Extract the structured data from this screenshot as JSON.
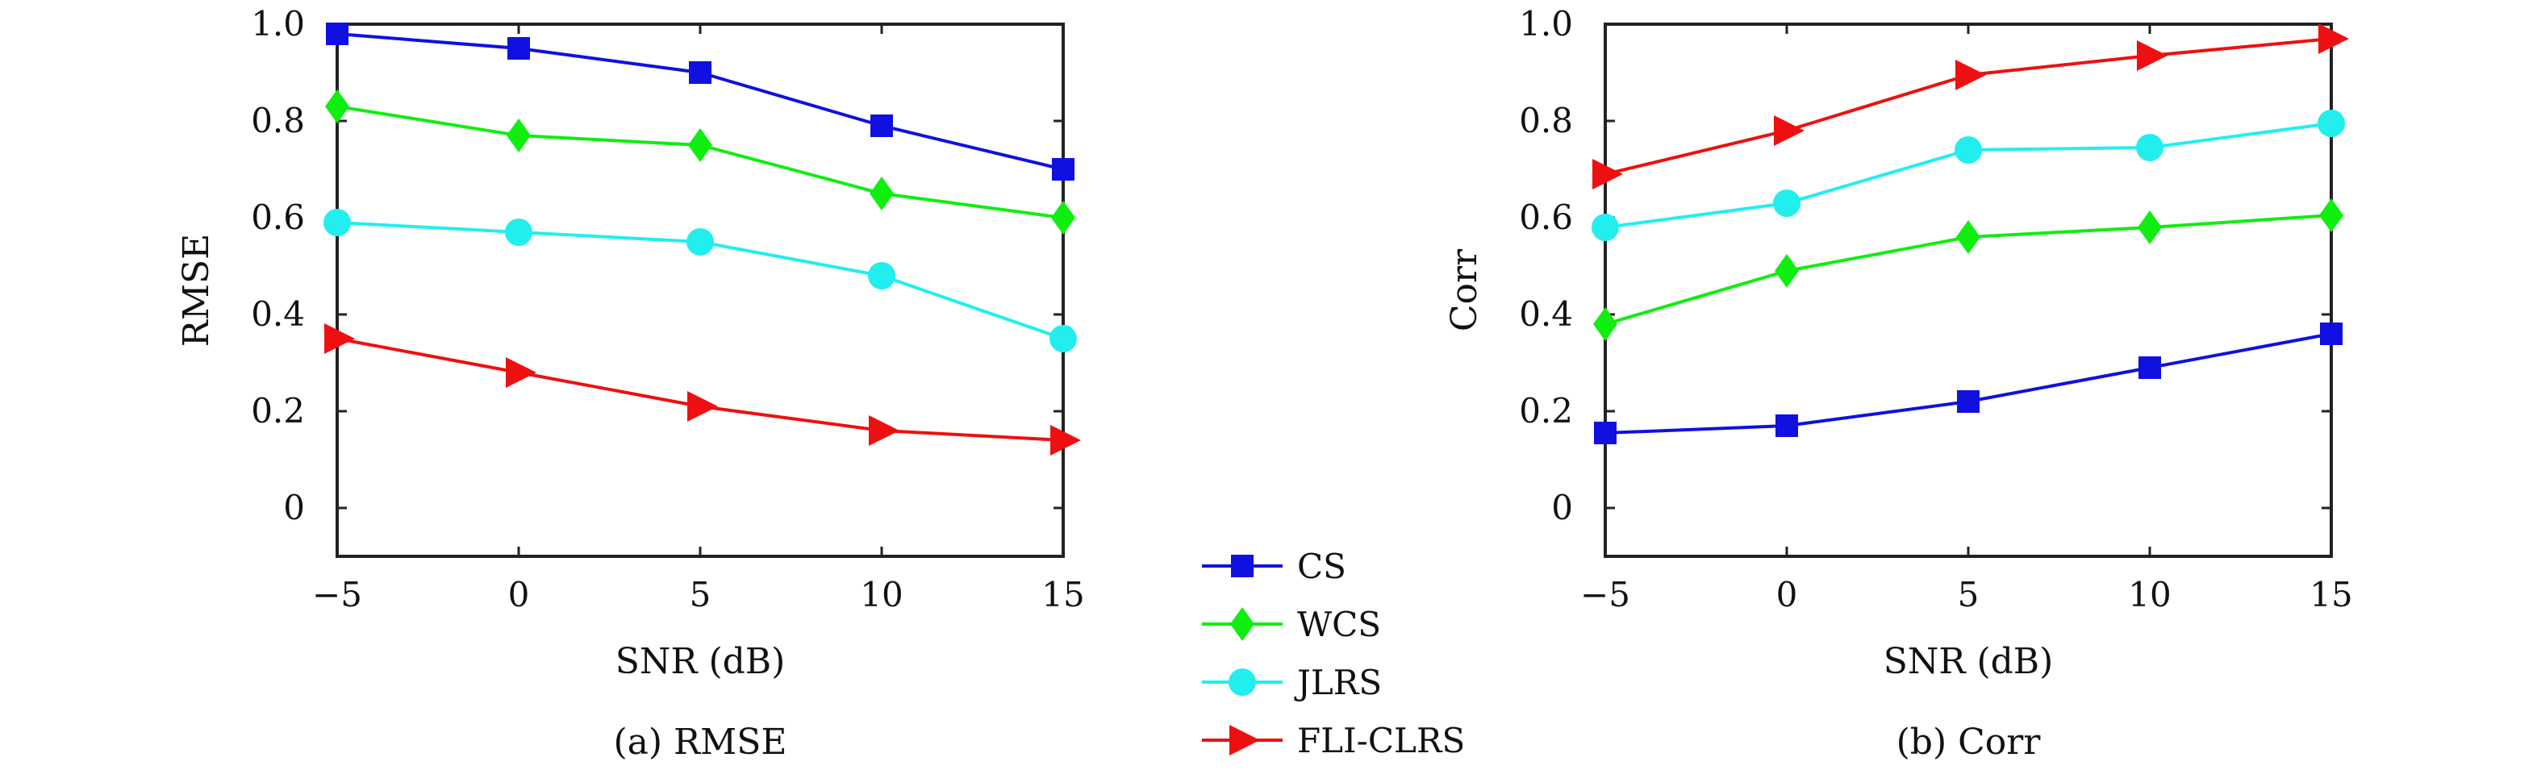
{
  "legend": {
    "entries": [
      {
        "label": "CS",
        "color": "#1010e0",
        "marker": "square"
      },
      {
        "label": "WCS",
        "color": "#10ee10",
        "marker": "diamond"
      },
      {
        "label": "JLRS",
        "color": "#22eeee",
        "marker": "circle"
      },
      {
        "label": "FLI-CLRS",
        "color": "#ee1010",
        "marker": "triangle-right"
      }
    ]
  },
  "chart_data": [
    {
      "type": "line",
      "caption": "(a) RMSE",
      "xlabel": "SNR (dB)",
      "ylabel": "RMSE",
      "x": [
        -5,
        0,
        5,
        10,
        15
      ],
      "x_tick_labels": [
        "−5",
        "0",
        "5",
        "10",
        "15"
      ],
      "y_ticks": [
        0,
        0.2,
        0.4,
        0.6,
        0.8,
        1.0
      ],
      "y_tick_labels": [
        "0",
        "0.2",
        "0.4",
        "0.6",
        "0.8",
        "1.0"
      ],
      "xlim": [
        -5,
        15
      ],
      "ylim": [
        -0.1,
        1.0
      ],
      "grid": false,
      "series": [
        {
          "name": "CS",
          "values": [
            0.98,
            0.95,
            0.9,
            0.79,
            0.7
          ]
        },
        {
          "name": "WCS",
          "values": [
            0.83,
            0.77,
            0.75,
            0.65,
            0.6
          ]
        },
        {
          "name": "JLRS",
          "values": [
            0.59,
            0.57,
            0.55,
            0.48,
            0.35
          ]
        },
        {
          "name": "FLI-CLRS",
          "values": [
            0.35,
            0.28,
            0.21,
            0.16,
            0.14
          ]
        }
      ]
    },
    {
      "type": "line",
      "caption": "(b) Corr",
      "xlabel": "SNR (dB)",
      "ylabel": "Corr",
      "x": [
        -5,
        0,
        5,
        10,
        15
      ],
      "x_tick_labels": [
        "−5",
        "0",
        "5",
        "10",
        "15"
      ],
      "y_ticks": [
        0,
        0.2,
        0.4,
        0.6,
        0.8,
        1.0
      ],
      "y_tick_labels": [
        "0",
        "0.2",
        "0.4",
        "0.6",
        "0.8",
        "1.0"
      ],
      "xlim": [
        -5,
        15
      ],
      "ylim": [
        -0.1,
        1.0
      ],
      "grid": false,
      "series": [
        {
          "name": "CS",
          "values": [
            0.155,
            0.17,
            0.22,
            0.29,
            0.36
          ]
        },
        {
          "name": "WCS",
          "values": [
            0.38,
            0.49,
            0.56,
            0.58,
            0.605
          ]
        },
        {
          "name": "JLRS",
          "values": [
            0.58,
            0.63,
            0.74,
            0.745,
            0.795
          ]
        },
        {
          "name": "FLI-CLRS",
          "values": [
            0.69,
            0.78,
            0.895,
            0.935,
            0.97
          ]
        }
      ]
    }
  ]
}
